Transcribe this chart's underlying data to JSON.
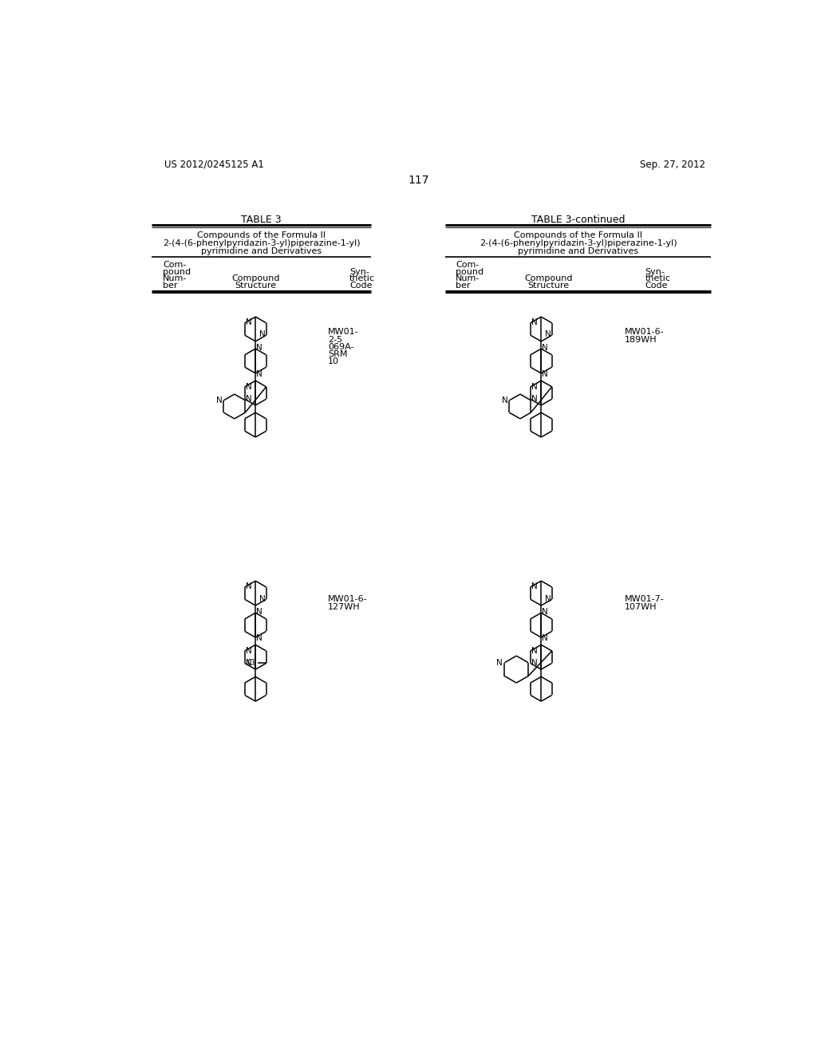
{
  "page_number": "117",
  "patent_left": "US 2012/0245125 A1",
  "patent_right": "Sep. 27, 2012",
  "table_left_title": "TABLE 3",
  "table_right_title": "TABLE 3-continued",
  "subtitle_line1": "Compounds of the Formula II",
  "subtitle_line2": "2-(4-(6-phenylpyridazin-3-yl)piperazine-1-yl)",
  "subtitle_line3": "pyrimidine and Derivatives",
  "col_header_1a": "Com-",
  "col_header_1b": "pound",
  "col_header_1c": "Num-",
  "col_header_1d": "ber",
  "col_header_2a": "Compound",
  "col_header_2b": "Structure",
  "col_header_3a": "Syn-",
  "col_header_3b": "thetic",
  "col_header_3c": "Code",
  "code1_lines": [
    "MW01-",
    "2-5",
    "069A-",
    "SRM",
    "10"
  ],
  "code2_lines": [
    "MW01-6-",
    "189WH"
  ],
  "code3_lines": [
    "MW01-6-",
    "127WH"
  ],
  "code4_lines": [
    "MW01-7-",
    "107WH"
  ],
  "background_color": "#ffffff",
  "text_color": "#000000"
}
